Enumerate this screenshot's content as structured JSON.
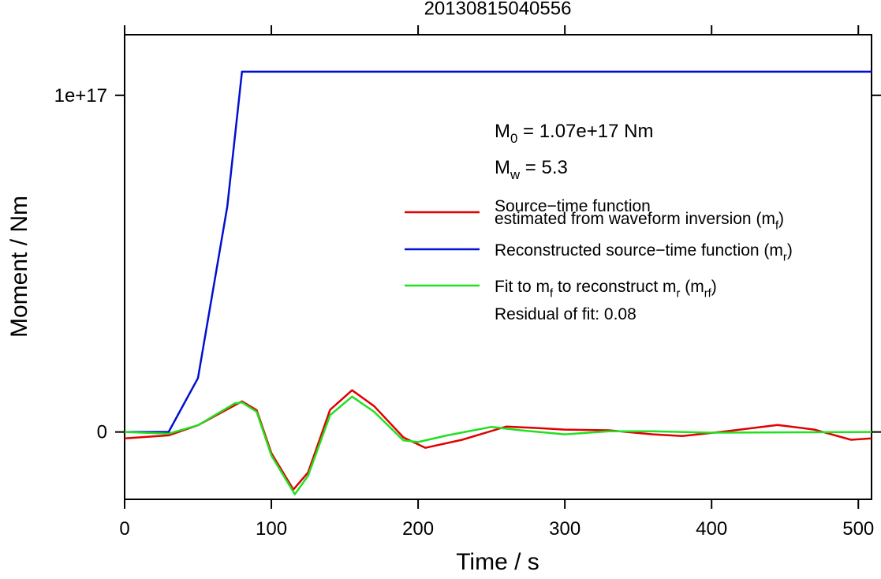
{
  "chart_data": {
    "type": "line",
    "title": "20130815040556",
    "xlabel": "Time / s",
    "ylabel": "Moment / Nm",
    "xlim": [
      0,
      509
    ],
    "ylim": [
      -2e+16,
      1.18e+17
    ],
    "xticks": [
      0,
      100,
      200,
      300,
      400,
      500
    ],
    "yticks": [
      0,
      {
        "value": 1e+17,
        "label": "1e+17"
      }
    ],
    "series": [
      {
        "name": [
          [
            "Source−time function"
          ],
          [
            "estimated from waveform inversion (m",
            "f",
            ")"
          ]
        ],
        "color": "#e00000",
        "x": [
          0,
          30,
          50,
          80,
          90,
          100,
          115,
          125,
          140,
          155,
          170,
          190,
          205,
          230,
          260,
          280,
          300,
          330,
          360,
          380,
          410,
          445,
          470,
          495,
          509
        ],
        "values": [
          -1900000000000000.0,
          -1000000000000000.0,
          2000000000000000.0,
          9100000000000000.0,
          6500000000000000.0,
          -6300000000000000.0,
          -1.71e+16,
          -1.2e+16,
          6600000000000000.0,
          1.24e+16,
          7700000000000000.0,
          -1600000000000000.0,
          -4700000000000000.0,
          -2300000000000000.0,
          1600000000000000.0,
          1200000000000000.0,
          700000000000000.0,
          500000000000000.0,
          -700000000000000.0,
          -1200000000000000.0,
          200000000000000.0,
          2100000000000000.0,
          700000000000000.0,
          -2300000000000000.0,
          -1900000000000000.0
        ]
      },
      {
        "name": [
          [
            "Reconstructed source−time function (m",
            "r",
            ")"
          ]
        ],
        "color": "#0010d0",
        "x": [
          0,
          30,
          50,
          70,
          80,
          509
        ],
        "values": [
          0,
          0,
          1.6e+16,
          6.7e+16,
          1.07e+17,
          1.07e+17
        ]
      },
      {
        "name": [
          [
            "Fit to m",
            "f",
            " to reconstruct m",
            "r",
            " (m",
            "rf",
            ")"
          ]
        ],
        "color": "#20e020",
        "x": [
          0,
          30,
          50,
          75,
          80,
          90,
          100,
          116,
          125,
          140,
          155,
          170,
          190,
          200,
          220,
          250,
          270,
          300,
          330,
          360,
          400,
          509
        ],
        "values": [
          0,
          -500000000000000.0,
          2000000000000000.0,
          8500000000000000.0,
          8800000000000000.0,
          6000000000000000.0,
          -7000000000000000.0,
          -1.85e+16,
          -1.3e+16,
          5000000000000000.0,
          1.05e+16,
          6000000000000000.0,
          -2500000000000000.0,
          -3000000000000000.0,
          -1000000000000000.0,
          1500000000000000.0,
          500000000000000.0,
          -700000000000000.0,
          200000000000000.0,
          200000000000000.0,
          -200000000000000.0,
          0
        ]
      }
    ],
    "annotations": [
      [
        [
          "M",
          "0",
          " = 1.07e+17 Nm"
        ]
      ],
      [
        [
          "M",
          "w",
          " = 5.3"
        ]
      ],
      [
        [
          "Residual of fit: 0.08"
        ]
      ]
    ]
  }
}
